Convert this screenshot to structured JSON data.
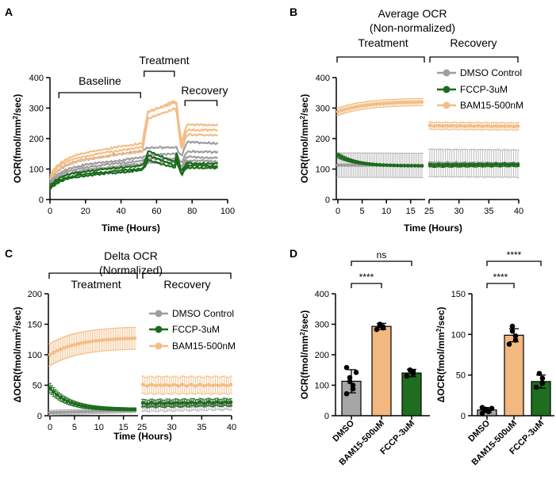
{
  "colors": {
    "dmso": "#9e9e9e",
    "fccp": "#1c6b1c",
    "bam": "#f3bd86",
    "dmso_bar": "#a6a6a6",
    "bam_bar": "#f2b87f",
    "fccp_bar": "#1f6e1f"
  },
  "panels": {
    "A": "A",
    "B": "B",
    "C": "C",
    "D": "D"
  },
  "chart_data": [
    {
      "id": "A",
      "type": "line",
      "xlabel": "Time (Hours)",
      "ylabel": "OCR(fmol/mm²/sec)",
      "ylabel_main": "OCR(fmol/mm",
      "ylabel_sup": "2",
      "ylabel_end": "/sec)",
      "xlim": [
        0,
        100
      ],
      "ylim": [
        0,
        400
      ],
      "xticks": [
        "0",
        "20",
        "40",
        "60",
        "80",
        "100"
      ],
      "yticks": [
        "0",
        "100",
        "200",
        "300",
        "400"
      ],
      "phases": [
        {
          "label": "Baseline",
          "x0": 5,
          "x1": 51
        },
        {
          "label": "Treatment",
          "x0": 53,
          "x1": 70
        },
        {
          "label": "Recovery",
          "x0": 76,
          "x1": 94
        }
      ],
      "series": [
        {
          "group": "bam",
          "start": 78,
          "pre": 185,
          "peak": 320,
          "recovery": 245
        },
        {
          "group": "bam",
          "start": 72,
          "pre": 172,
          "peak": 325,
          "recovery": 228
        },
        {
          "group": "bam",
          "start": 65,
          "pre": 158,
          "peak": 300,
          "recovery": 212
        },
        {
          "group": "dmso",
          "start": 62,
          "pre": 160,
          "peak": 172,
          "recovery": 188
        },
        {
          "group": "dmso",
          "start": 55,
          "pre": 138,
          "peak": 150,
          "recovery": 158
        },
        {
          "group": "dmso",
          "start": 50,
          "pre": 128,
          "peak": 135,
          "recovery": 140
        },
        {
          "group": "dmso",
          "start": 45,
          "pre": 118,
          "peak": 122,
          "recovery": 128
        },
        {
          "group": "fccp",
          "start": 45,
          "pre": 112,
          "peak": 160,
          "recovery": 120
        },
        {
          "group": "fccp",
          "start": 40,
          "pre": 102,
          "peak": 145,
          "recovery": 112
        },
        {
          "group": "fccp",
          "start": 35,
          "pre": 96,
          "peak": 130,
          "recovery": 105
        }
      ]
    },
    {
      "id": "B",
      "type": "line",
      "title": "Average OCR",
      "subtitle": "(Non-normalized)",
      "xlabel": "Time (Hours)",
      "ylabel_main": "OCR(fmol/mm",
      "ylabel_sup": "2",
      "ylabel_end": "/sec)",
      "ylim": [
        0,
        400
      ],
      "xticks_left": [
        "0",
        "5",
        "10",
        "15"
      ],
      "xticks_right": [
        "25",
        "30",
        "35",
        "40"
      ],
      "yticks": [
        "0",
        "100",
        "200",
        "300",
        "400"
      ],
      "phases": [
        {
          "label": "Treatment"
        },
        {
          "label": "Recovery"
        }
      ],
      "legend": [
        "DMSO Control",
        "FCCP-3uM",
        "BAM15-500nM"
      ],
      "series": [
        {
          "group": "dmso",
          "treat": [
            113,
            112
          ],
          "treat_err": 40,
          "rec": [
            120,
            118
          ],
          "rec_err": 45
        },
        {
          "group": "fccp",
          "treat": [
            145,
            110
          ],
          "treat_err": 8,
          "rec": [
            112,
            114
          ],
          "rec_err": 6
        },
        {
          "group": "bam",
          "treat": [
            288,
            320
          ],
          "treat_err": 12,
          "rec": [
            242,
            240
          ],
          "rec_err": 12
        }
      ]
    },
    {
      "id": "C",
      "type": "line",
      "title": "Delta OCR",
      "subtitle": "(Normalized)",
      "xlabel": "Time (Hours)",
      "ylabel": "ΔOCR(fmol/mm²/sec)",
      "ylabel_main": "ΔOCR(fmol/mm",
      "ylabel_sup": "2",
      "ylabel_end": "/sec)",
      "ylim": [
        0,
        200
      ],
      "xticks_left": [
        "0",
        "5",
        "10",
        "15"
      ],
      "xticks_right": [
        "25",
        "30",
        "35",
        "40"
      ],
      "yticks": [
        "0",
        "50",
        "100",
        "150",
        "200"
      ],
      "phases": [
        {
          "label": "Treatment"
        },
        {
          "label": "Recovery"
        }
      ],
      "legend": [
        "DMSO Control",
        "FCCP-3uM",
        "BAM15-500nM"
      ],
      "series": [
        {
          "group": "dmso",
          "treat": [
            5,
            9
          ],
          "treat_err": 4,
          "rec": [
            15,
            18
          ],
          "rec_err": 8
        },
        {
          "group": "fccp",
          "treat": [
            45,
            10
          ],
          "treat_err": 8,
          "rec": [
            20,
            22
          ],
          "rec_err": 6
        },
        {
          "group": "bam",
          "treat": [
            100,
            127
          ],
          "treat_err": 18,
          "rec": [
            50,
            50
          ],
          "rec_err": 14
        }
      ]
    },
    {
      "id": "D1",
      "type": "bar",
      "ylabel_main": "OCR(fmol/mm",
      "ylabel_sup": "2",
      "ylabel_end": "/sec)",
      "ylim": [
        0,
        400
      ],
      "yticks": [
        "0",
        "100",
        "200",
        "300",
        "400"
      ],
      "categories": [
        "DMSO",
        "BAM15-500uM",
        "FCCP-3uM"
      ],
      "values": [
        113,
        293,
        140
      ],
      "errors": [
        38,
        10,
        12
      ],
      "points": [
        [
          72,
          88,
          100,
          112,
          125,
          142,
          158
        ],
        [
          283,
          288,
          292,
          296,
          300
        ],
        [
          130,
          138,
          145,
          150
        ]
      ],
      "comparisons": [
        {
          "from": 0,
          "to": 1,
          "label": "****"
        },
        {
          "from": 0,
          "to": 2,
          "label": "ns"
        }
      ]
    },
    {
      "id": "D2",
      "type": "bar",
      "ylabel_main": "ΔOCR(fmol/mm",
      "ylabel_sup": "2",
      "ylabel_end": "/sec)",
      "ylim": [
        0,
        150
      ],
      "yticks": [
        "0",
        "50",
        "100",
        "150"
      ],
      "categories": [
        "DMSO",
        "BAM15-500uM",
        "FCCP-3uM"
      ],
      "values": [
        7,
        99,
        42
      ],
      "errors": [
        3,
        8,
        8
      ],
      "points": [
        [
          3,
          5,
          6,
          7,
          8,
          9,
          10
        ],
        [
          88,
          93,
          98,
          104,
          110
        ],
        [
          35,
          40,
          46,
          52
        ]
      ],
      "comparisons": [
        {
          "from": 0,
          "to": 1,
          "label": "****"
        },
        {
          "from": 0,
          "to": 2,
          "label": "****"
        }
      ]
    }
  ]
}
